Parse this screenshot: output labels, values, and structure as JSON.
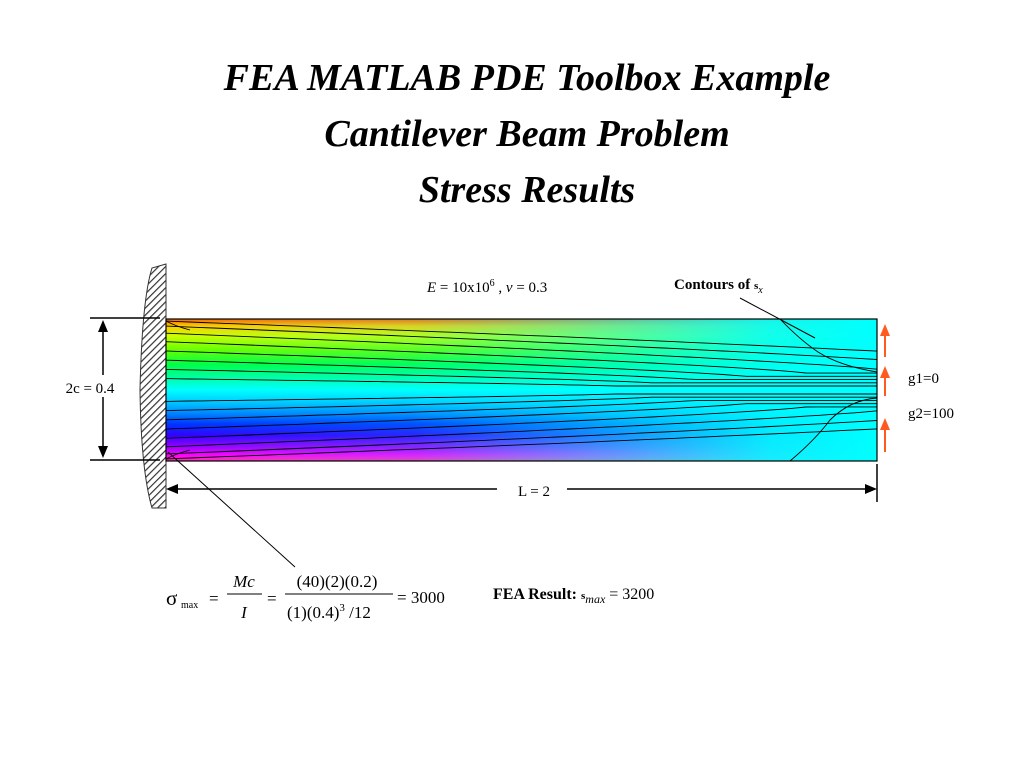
{
  "title": {
    "line1": "FEA MATLAB PDE Toolbox Example",
    "line2": "Cantilever Beam Problem",
    "line3": "Stress Results"
  },
  "material": {
    "E_symbol": "E",
    "E_value": " = 10x10",
    "E_exp": "6",
    "sep": " , ",
    "nu_symbol": "v",
    "nu_value": " = 0.3"
  },
  "contours_label": {
    "text": "Contours of ",
    "sym": "s",
    "sub": "x"
  },
  "dimensions": {
    "height_label": "2c = 0.4",
    "length_label": "L = 2"
  },
  "boundary": {
    "g1": "g1=0",
    "g2": "g2=100"
  },
  "formula": {
    "sigma": "σ",
    "sigma_sub": "max",
    "eq1": "=",
    "num1": "Mc",
    "den1": "I",
    "eq2": "=",
    "num2": "(40)(2)(0.2)",
    "den2a": "(1)(0.4)",
    "den2_exp": "3",
    "den2b": " /12",
    "result": "= 3000"
  },
  "fea_result": {
    "label": "FEA Result: ",
    "sym": "s",
    "sub": "max",
    "value": " =  3200"
  },
  "colors": {
    "arrow": "#ff5a1f",
    "contour_line": "#000000",
    "hatch": "#333333"
  }
}
